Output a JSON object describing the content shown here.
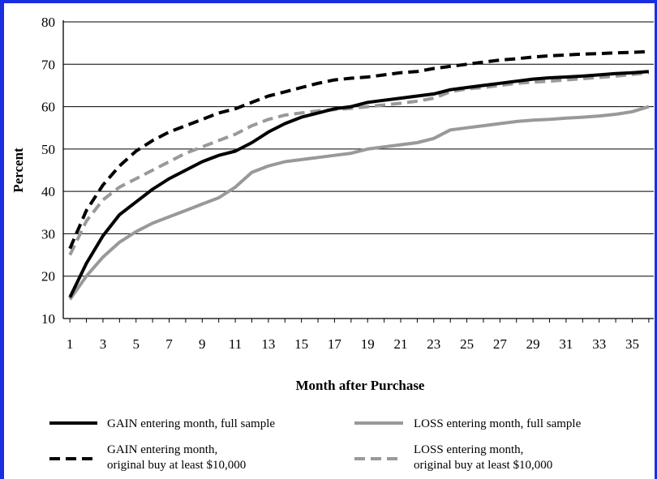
{
  "chart_data": {
    "type": "line",
    "title": "",
    "xlabel": "Month after Purchase",
    "ylabel": "Percent",
    "ylim": [
      10,
      80
    ],
    "xlim": [
      1,
      36
    ],
    "yticks": [
      "10",
      "20",
      "30",
      "40",
      "50",
      "60",
      "70",
      "80"
    ],
    "xticks": [
      "1",
      "3",
      "5",
      "7",
      "9",
      "11",
      "13",
      "15",
      "17",
      "19",
      "21",
      "23",
      "25",
      "27",
      "29",
      "31",
      "33",
      "35"
    ],
    "grid": "horizontal",
    "legend_position": "bottom",
    "x": [
      1,
      2,
      3,
      4,
      5,
      6,
      7,
      8,
      9,
      10,
      11,
      12,
      13,
      14,
      15,
      16,
      17,
      18,
      19,
      20,
      21,
      22,
      23,
      24,
      25,
      26,
      27,
      28,
      29,
      30,
      31,
      32,
      33,
      34,
      35,
      36
    ],
    "series": [
      {
        "name": "GAIN entering month, full sample",
        "color": "#000000",
        "style": "solid",
        "values": [
          15,
          23,
          29.5,
          34.5,
          37.5,
          40.5,
          43,
          45,
          47,
          48.5,
          49.5,
          51.5,
          54,
          56,
          57.5,
          58.5,
          59.5,
          60,
          61,
          61.5,
          62,
          62.5,
          63,
          64,
          64.5,
          65,
          65.5,
          66,
          66.5,
          66.8,
          67,
          67.2,
          67.5,
          67.8,
          68,
          68.3
        ]
      },
      {
        "name": "LOSS entering month, full sample",
        "color": "#999999",
        "style": "solid",
        "values": [
          14.5,
          20,
          24.5,
          28,
          30.5,
          32.5,
          34,
          35.5,
          37,
          38.5,
          41,
          44.5,
          46,
          47,
          47.5,
          48,
          48.5,
          49,
          50,
          50.5,
          51,
          51.5,
          52.5,
          54.5,
          55,
          55.5,
          56,
          56.5,
          56.8,
          57,
          57.3,
          57.5,
          57.8,
          58.2,
          58.8,
          60
        ]
      },
      {
        "name": "GAIN entering month, original buy at least $10,000",
        "color": "#000000",
        "style": "dashed",
        "values": [
          26.5,
          35.5,
          41.5,
          46,
          49.5,
          52,
          54,
          55.5,
          57,
          58.5,
          59.5,
          61,
          62.5,
          63.5,
          64.5,
          65.5,
          66.3,
          66.7,
          67,
          67.5,
          68,
          68.3,
          69,
          69.5,
          70,
          70.5,
          71,
          71.3,
          71.7,
          72,
          72.2,
          72.4,
          72.5,
          72.7,
          72.8,
          73
        ]
      },
      {
        "name": "LOSS entering month, original buy at least $10,000",
        "color": "#999999",
        "style": "dashed",
        "values": [
          25,
          33,
          38,
          41,
          43,
          45,
          47,
          49,
          50.5,
          52,
          53.5,
          55.5,
          57,
          58,
          58.5,
          59,
          59.3,
          59.6,
          60,
          60.4,
          60.8,
          61.3,
          62,
          63.5,
          64.2,
          64.5,
          65,
          65.5,
          65.8,
          66,
          66.3,
          66.6,
          66.9,
          67.2,
          67.6,
          68
        ]
      }
    ],
    "legend": [
      {
        "lines": [
          "GAIN entering month, full sample"
        ],
        "color": "#000000",
        "style": "solid"
      },
      {
        "lines": [
          "LOSS entering month, full sample"
        ],
        "color": "#999999",
        "style": "solid"
      },
      {
        "lines": [
          "GAIN entering month,",
          "original buy at least $10,000"
        ],
        "color": "#000000",
        "style": "dashed"
      },
      {
        "lines": [
          "LOSS entering month,",
          "original buy at least $10,000"
        ],
        "color": "#999999",
        "style": "dashed"
      }
    ]
  }
}
